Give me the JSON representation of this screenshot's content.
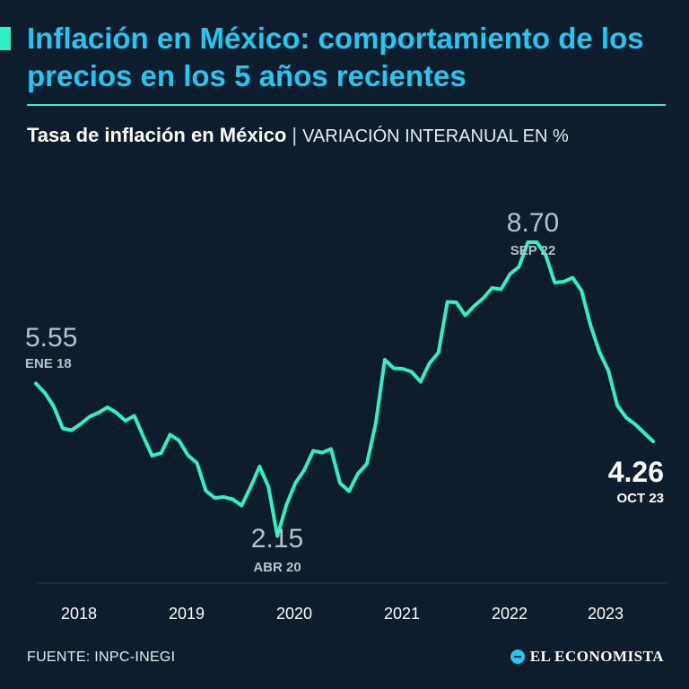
{
  "header": {
    "title": "Inflación en México: comportamiento de los precios en los 5 años recientes",
    "subtitle_main": "Tasa de inflación en México",
    "subtitle_separator": "|",
    "subtitle_unit": "VARIACIÓN INTERANUAL EN %"
  },
  "footer": {
    "source": "FUENTE: INPC-INEGI",
    "brand": "EL ECONOMISTA"
  },
  "colors": {
    "background": "#0e1d2e",
    "line": "#2ef2c0",
    "title": "#20c8f2",
    "annotation_muted": "#b9c2cc",
    "annotation_strong": "#ffffff"
  },
  "chart_data": {
    "type": "line",
    "x_labels": [
      "2018",
      "2019",
      "2020",
      "2021",
      "2022",
      "2023"
    ],
    "ylim": [
      1.5,
      9.5
    ],
    "grid": false,
    "series": [
      {
        "values": [
          5.55,
          5.34,
          5.04,
          4.55,
          4.51,
          4.65,
          4.81,
          4.9,
          5.02,
          4.9,
          4.72,
          4.83,
          4.37,
          3.94,
          4.0,
          4.41,
          4.28,
          3.95,
          3.78,
          3.16,
          3.0,
          3.02,
          2.97,
          2.83,
          3.24,
          3.7,
          3.25,
          2.15,
          2.84,
          3.33,
          3.62,
          4.05,
          4.01,
          4.09,
          3.33,
          3.15,
          3.54,
          3.76,
          4.67,
          6.08,
          5.89,
          5.88,
          5.81,
          5.59,
          6.0,
          6.24,
          7.37,
          7.36,
          7.07,
          7.28,
          7.45,
          7.68,
          7.65,
          7.99,
          8.15,
          8.7,
          8.7,
          8.41,
          7.8,
          7.82,
          7.91,
          7.62,
          6.85,
          6.25,
          5.84,
          5.06,
          4.79,
          4.64,
          4.45,
          4.26
        ],
        "first_label": "ENE 18",
        "peak_label": "SEP 22",
        "min_label": "ABR 20",
        "last_label": "OCT 23"
      }
    ],
    "annotations": [
      {
        "value": "5.55",
        "label": "ENE 18"
      },
      {
        "value": "8.70",
        "label": "SEP 22"
      },
      {
        "value": "2.15",
        "label": "ABR 20"
      },
      {
        "value": "4.26",
        "label": "OCT 23"
      }
    ]
  }
}
